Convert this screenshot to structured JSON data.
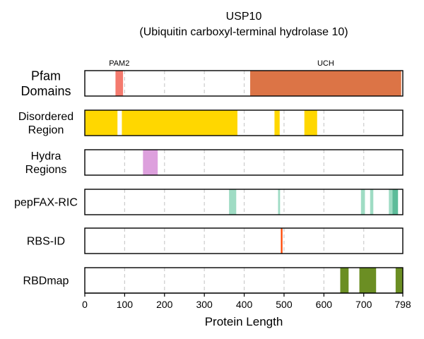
{
  "chart_data": {
    "type": "bar",
    "title": "USP10",
    "subtitle": "(Ubiquitin carboxyl-terminal hydrolase 10)",
    "xlabel": "Protein Length",
    "xlim": [
      0,
      798
    ],
    "x_ticks": [
      "0",
      "100",
      "200",
      "300",
      "400",
      "500",
      "600",
      "700",
      "798"
    ],
    "grid": "dashed vertical",
    "tracks": [
      {
        "label_lines": [
          "Pfam",
          "Domains"
        ],
        "segments": [
          {
            "name": "PAM2",
            "start": 77,
            "end": 96,
            "color": "#f47a6e"
          },
          {
            "name": "UCH",
            "start": 415,
            "end": 794,
            "color": "#dc7446"
          }
        ]
      },
      {
        "label_lines": [
          "Disordered",
          "Region"
        ],
        "segments": [
          {
            "start": 0,
            "end": 82,
            "color": "#ffd700"
          },
          {
            "start": 93,
            "end": 383,
            "color": "#ffd700"
          },
          {
            "start": 476,
            "end": 489,
            "color": "#ffd700"
          },
          {
            "start": 551,
            "end": 583,
            "color": "#ffd700"
          }
        ]
      },
      {
        "label_lines": [
          "Hydra",
          "Regions"
        ],
        "segments": [
          {
            "start": 146,
            "end": 183,
            "color": "#dda0dd"
          }
        ]
      },
      {
        "label_lines": [
          "pepFAX-RIC"
        ],
        "segments": [
          {
            "start": 362,
            "end": 380,
            "color": "#9fdcc4"
          },
          {
            "start": 485,
            "end": 490,
            "color": "#9fdcc4"
          },
          {
            "start": 693,
            "end": 703,
            "color": "#9fdcc4"
          },
          {
            "start": 716,
            "end": 724,
            "color": "#9fdcc4"
          },
          {
            "start": 763,
            "end": 772,
            "color": "#9fdcc4"
          },
          {
            "start": 772,
            "end": 786,
            "color": "#5dbc9a"
          }
        ]
      },
      {
        "label_lines": [
          "RBS-ID"
        ],
        "segments": [
          {
            "start": 492,
            "end": 496,
            "color": "#ff4500"
          }
        ]
      },
      {
        "label_lines": [
          "RBDmap"
        ],
        "segments": [
          {
            "start": 641,
            "end": 662,
            "color": "#6b8e23"
          },
          {
            "start": 689,
            "end": 731,
            "color": "#6b8e23"
          },
          {
            "start": 780,
            "end": 798,
            "color": "#6b8e23"
          }
        ]
      }
    ]
  }
}
